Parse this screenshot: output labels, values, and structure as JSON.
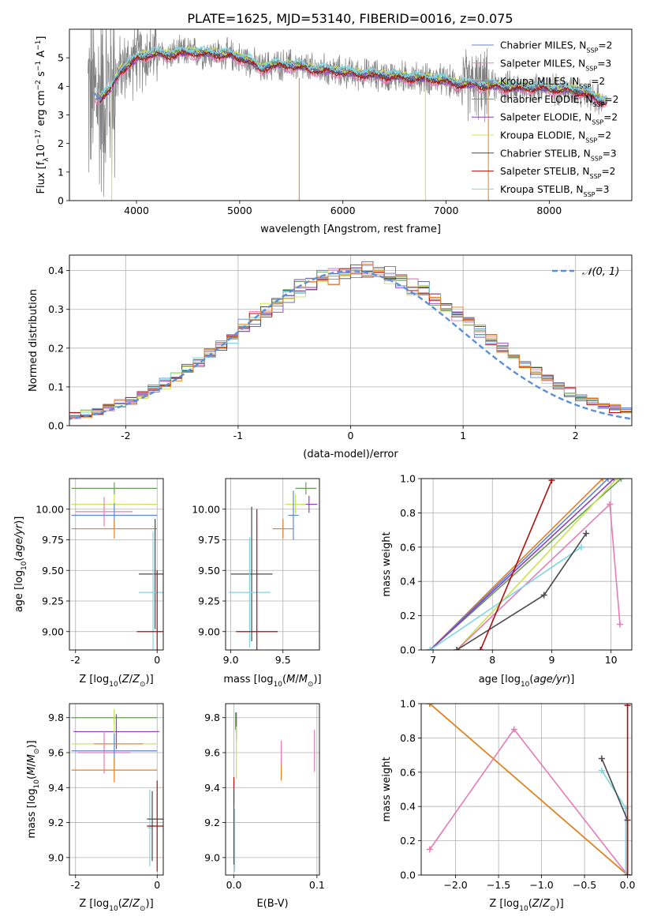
{
  "title": "PLATE=1625, MJD=53140, FIBERID=0016, z=0.075",
  "colors": {
    "Chabrier MILES": "#5c86d8",
    "Salpeter MILES": "#e77bb6",
    "Kroupa MILES": "#6f6f9e",
    "Chabrier ELODIE": "#6a9e58",
    "Salpeter ELODIE": "#8c3fc6",
    "Kroupa ELODIE": "#c8e34d",
    "Chabrier STELIB": "#4a4a4a",
    "Salpeter STELIB": "#b10f0f",
    "Kroupa STELIB": "#7fd6e0",
    "orange": "#e67e22",
    "data_gray": "#808080",
    "gauss": "#5b8fd6"
  },
  "chart_data": [
    {
      "id": "spectrum",
      "type": "line",
      "title": "PLATE=1625, MJD=53140, FIBERID=0016, z=0.075",
      "xlabel": "wavelength [Angstrom, rest frame]",
      "ylabel_parts": [
        "Flux [f",
        "λ",
        "10",
        "−17",
        " erg cm",
        "−2",
        " s",
        "−1",
        " A",
        "−1",
        "]"
      ],
      "xlim": [
        3350,
        8800
      ],
      "ylim": [
        0,
        6
      ],
      "xticks": [
        4000,
        5000,
        6000,
        7000,
        8000
      ],
      "yticks": [
        0,
        1,
        2,
        3,
        4,
        5
      ],
      "legend_loc": "upper right",
      "legend": [
        {
          "name": "Chabrier MILES",
          "nssp": "2"
        },
        {
          "name": "Salpeter MILES",
          "nssp": "3"
        },
        {
          "name": "Kroupa MILES",
          "nssp": "2"
        },
        {
          "name": "Chabrier ELODIE",
          "nssp": "2"
        },
        {
          "name": "Salpeter ELODIE",
          "nssp": "2"
        },
        {
          "name": "Kroupa ELODIE",
          "nssp": "2"
        },
        {
          "name": "Chabrier STELIB",
          "nssp": "3"
        },
        {
          "name": "Salpeter STELIB",
          "nssp": "2"
        },
        {
          "name": "Kroupa STELIB",
          "nssp": "3"
        }
      ],
      "continuum": {
        "x": [
          3550,
          3650,
          3750,
          3850,
          3950,
          4000,
          4100,
          4200,
          4300,
          4400,
          4500,
          4700,
          4900,
          5100,
          5200,
          5300,
          5500,
          5700,
          5900,
          6100,
          6300,
          6500,
          6700,
          6900,
          7100,
          7300,
          7500,
          7700,
          7900,
          8100,
          8300,
          8500
        ],
        "y": [
          3.7,
          3.6,
          3.9,
          4.6,
          4.8,
          5.0,
          5.1,
          5.15,
          5.1,
          5.15,
          5.2,
          5.15,
          5.1,
          4.9,
          4.6,
          4.75,
          4.75,
          4.6,
          4.55,
          4.45,
          4.4,
          4.35,
          4.3,
          4.25,
          4.1,
          4.05,
          4.0,
          3.95,
          3.95,
          3.9,
          3.85,
          3.5
        ]
      }
    },
    {
      "id": "residuals",
      "type": "histogram",
      "xlabel": "(data-model)/error",
      "ylabel": "Normed distribution",
      "xlim": [
        -2.5,
        2.5
      ],
      "ylim": [
        0,
        0.44
      ],
      "xticks": [
        -2,
        -1,
        0,
        1,
        2
      ],
      "yticks": [
        0.0,
        0.1,
        0.2,
        0.3,
        0.4
      ],
      "legend_loc": "upper right",
      "legend": "𝒩(0, 1)",
      "grid": true
    },
    {
      "id": "z-age",
      "type": "errorbar",
      "xlabel": "Z [log10(Z/Z⊙)]",
      "ylabel": "age  [log10(age/yr)]",
      "xlim": [
        -2.15,
        0.15
      ],
      "ylim": [
        8.85,
        10.25
      ],
      "xticks": [
        -2,
        0
      ],
      "yticks": [
        9.0,
        9.25,
        9.5,
        9.75,
        10.0
      ],
      "points": [
        {
          "s": "Chabrier ELODIE",
          "x": -1.05,
          "y": 10.17,
          "xe": 1.05,
          "ye": 0.05
        },
        {
          "s": "Kroupa ELODIE",
          "x": -1.05,
          "y": 10.04,
          "xe": 1.05,
          "ye": 0.08
        },
        {
          "s": "Salpeter MILES",
          "x": -1.3,
          "y": 9.98,
          "xe": 0.7,
          "ye": 0.12
        },
        {
          "s": "Chabrier MILES",
          "x": -1.05,
          "y": 9.95,
          "xe": 1.05,
          "ye": 0.1
        },
        {
          "s": "orange",
          "x": -1.05,
          "y": 9.84,
          "xe": 1.05,
          "ye": 0.08
        },
        {
          "s": "Chabrier STELIB",
          "x": -0.05,
          "y": 9.47,
          "xe": 0.4,
          "ye": 0.45
        },
        {
          "s": "Kroupa STELIB",
          "x": -0.1,
          "y": 9.32,
          "xe": 0.35,
          "ye": 0.5
        },
        {
          "s": "Salpeter STELIB",
          "x": 0.0,
          "y": 9.0,
          "xe": 0.5,
          "ye": 0.5
        }
      ]
    },
    {
      "id": "mass-age",
      "type": "errorbar",
      "xlabel": "mass [log10(M/M⊙)]",
      "xlim": [
        8.95,
        9.85
      ],
      "ylim": [
        8.85,
        10.25
      ],
      "xticks": [
        9.0,
        9.5
      ],
      "yticks": [
        9.0,
        9.25,
        9.5,
        9.75,
        10.0
      ],
      "points": [
        {
          "s": "Chabrier ELODIE",
          "x": 9.72,
          "y": 10.17,
          "xe": 0.1,
          "ye": 0.05
        },
        {
          "s": "Salpeter ELODIE",
          "x": 9.75,
          "y": 10.04,
          "xe": 0.08,
          "ye": 0.07
        },
        {
          "s": "Kroupa ELODIE",
          "x": 9.62,
          "y": 10.04,
          "xe": 0.1,
          "ye": 0.08
        },
        {
          "s": "Chabrier MILES",
          "x": 9.6,
          "y": 9.95,
          "xe": 0.05,
          "ye": 0.2
        },
        {
          "s": "orange",
          "x": 9.5,
          "y": 9.84,
          "xe": 0.1,
          "ye": 0.08
        },
        {
          "s": "Chabrier STELIB",
          "x": 9.2,
          "y": 9.47,
          "xe": 0.2,
          "ye": 0.55
        },
        {
          "s": "Kroupa STELIB",
          "x": 9.18,
          "y": 9.32,
          "xe": 0.2,
          "ye": 0.45
        },
        {
          "s": "Salpeter STELIB",
          "x": 9.25,
          "y": 9.0,
          "xe": 0.2,
          "ye": 1.0
        }
      ]
    },
    {
      "id": "age-weight",
      "type": "line",
      "xlabel": "age  [log10(age/yr)]",
      "ylabel": "mass weight",
      "xlim": [
        6.8,
        10.35
      ],
      "ylim": [
        0,
        1
      ],
      "xticks": [
        7,
        8,
        9,
        10
      ],
      "yticks": [
        0.0,
        0.2,
        0.4,
        0.6,
        0.8,
        1.0
      ],
      "series": [
        {
          "s": "Chabrier ELODIE",
          "x": [
            6.95,
            10.17
          ],
          "y": [
            0.0,
            1.0
          ]
        },
        {
          "s": "orange",
          "x": [
            6.95,
            9.86
          ],
          "y": [
            0.0,
            1.0
          ]
        },
        {
          "s": "Chabrier MILES",
          "x": [
            6.95,
            9.95
          ],
          "y": [
            0.0,
            1.0
          ]
        },
        {
          "s": "Salpeter ELODIE",
          "x": [
            6.95,
            10.05
          ],
          "y": [
            0.0,
            1.0
          ]
        },
        {
          "s": "Kroupa ELODIE",
          "x": [
            7.4,
            10.1
          ],
          "y": [
            0.0,
            1.0
          ]
        },
        {
          "s": "Salpeter MILES",
          "x": [
            7.4,
            9.98,
            10.15
          ],
          "y": [
            0.0,
            0.85,
            0.15
          ]
        },
        {
          "s": "Kroupa STELIB",
          "x": [
            6.95,
            9.5
          ],
          "y": [
            0.0,
            0.6
          ]
        },
        {
          "s": "Chabrier STELIB",
          "x": [
            7.4,
            8.87,
            9.58
          ],
          "y": [
            0.0,
            0.32,
            0.68
          ]
        },
        {
          "s": "Salpeter STELIB",
          "x": [
            7.8,
            9.0
          ],
          "y": [
            0.0,
            0.99
          ]
        }
      ]
    },
    {
      "id": "z-mass",
      "type": "errorbar",
      "xlabel": "Z [log10(Z/Z⊙)]",
      "ylabel": "mass [log10(M/M⊙)]",
      "xlim": [
        -2.15,
        0.15
      ],
      "ylim": [
        8.9,
        9.88
      ],
      "xticks": [
        -2,
        0
      ],
      "yticks": [
        9.0,
        9.2,
        9.4,
        9.6,
        9.8
      ],
      "points": [
        {
          "s": "Chabrier ELODIE",
          "x": -1.05,
          "y": 9.8,
          "xe": 1.05,
          "ye": 0.04
        },
        {
          "s": "Salpeter ELODIE",
          "x": -1.0,
          "y": 9.72,
          "xe": 1.05,
          "ye": 0.1
        },
        {
          "s": "Kroupa ELODIE",
          "x": -1.05,
          "y": 9.65,
          "xe": 1.05,
          "ye": 0.2
        },
        {
          "s": "orange",
          "x": -0.95,
          "y": 9.65,
          "xe": 0.6,
          "ye": 0.0
        },
        {
          "s": "Salpeter MILES",
          "x": -1.3,
          "y": 9.6,
          "xe": 0.65,
          "ye": 0.12
        },
        {
          "s": "Chabrier MILES",
          "x": -1.05,
          "y": 9.61,
          "xe": 1.05,
          "ye": 0.1
        },
        {
          "s": "orange",
          "x": -1.05,
          "y": 9.5,
          "xe": 1.05,
          "ye": 0.07
        },
        {
          "s": "Chabrier STELIB",
          "x": -0.12,
          "y": 9.18,
          "xe": 0.05,
          "ye": 0.2
        },
        {
          "s": "Kroupa STELIB",
          "x": -0.18,
          "y": 9.17,
          "xe": 0.05,
          "ye": 0.22
        },
        {
          "s": "Chabrier STELIB",
          "x": -0.05,
          "y": 9.22,
          "xe": 0.2,
          "ye": 0.0
        },
        {
          "s": "Salpeter STELIB",
          "x": 0.0,
          "y": 9.18,
          "xe": 0.25,
          "ye": 0.26
        }
      ]
    },
    {
      "id": "ebv-mass",
      "type": "errorbar",
      "xlabel": "E(B-V)",
      "xlim": [
        -0.01,
        0.103
      ],
      "ylim": [
        8.9,
        9.88
      ],
      "xticks": [
        0.0,
        0.1
      ],
      "yticks": [
        9.0,
        9.2,
        9.4,
        9.6,
        9.8
      ],
      "points": [
        {
          "s": "Chabrier ELODIE",
          "x": 0.002,
          "y": 9.78,
          "xe": 0.0,
          "ye": 0.05
        },
        {
          "s": "Salpeter ELODIE",
          "x": 0.003,
          "y": 9.75,
          "xe": 0.0,
          "ye": 0.08
        },
        {
          "s": "Kroupa ELODIE",
          "x": 0.003,
          "y": 9.6,
          "xe": 0.0,
          "ye": 0.15
        },
        {
          "s": "orange",
          "x": 0.057,
          "y": 9.55,
          "xe": 0.0,
          "ye": 0.11
        },
        {
          "s": "Salpeter MILES",
          "x": 0.057,
          "y": 9.6,
          "xe": 0.0,
          "ye": 0.07
        },
        {
          "s": "Salpeter MILES",
          "x": 0.097,
          "y": 9.61,
          "xe": 0.0,
          "ye": 0.12
        },
        {
          "s": "Salpeter STELIB",
          "x": 0.0,
          "y": 9.38,
          "xe": 0.0,
          "ye": 0.08
        },
        {
          "s": "Chabrier STELIB",
          "x": 0.0,
          "y": 9.18,
          "xe": 0.0,
          "ye": 0.22
        },
        {
          "s": "Kroupa STELIB",
          "x": 0.001,
          "y": 9.1,
          "xe": 0.0,
          "ye": 0.18
        }
      ]
    },
    {
      "id": "z-weight",
      "type": "line",
      "xlabel": "Z [log10(Z/Z⊙)]",
      "ylabel": "mass weight",
      "xlim": [
        -2.4,
        0.05
      ],
      "ylim": [
        0,
        1
      ],
      "xticks": [
        -2.0,
        -1.5,
        -1.0,
        -0.5,
        0.0
      ],
      "yticks": [
        0.0,
        0.2,
        0.4,
        0.6,
        0.8,
        1.0
      ],
      "series": [
        {
          "s": "Chabrier ELODIE",
          "x": [
            -2.3,
            0.0
          ],
          "y": [
            1.0,
            0.0
          ]
        },
        {
          "s": "Kroupa ELODIE",
          "x": [
            -2.3,
            0.0
          ],
          "y": [
            1.0,
            0.0
          ]
        },
        {
          "s": "orange",
          "x": [
            -2.3,
            0.0
          ],
          "y": [
            1.0,
            0.0
          ]
        },
        {
          "s": "Salpeter MILES",
          "x": [
            -2.3,
            -1.32,
            0.0
          ],
          "y": [
            0.15,
            0.85,
            0.0
          ]
        },
        {
          "s": "Kroupa STELIB",
          "x": [
            -0.3,
            -0.02,
            -0.02
          ],
          "y": [
            0.61,
            0.39,
            0.0
          ]
        },
        {
          "s": "Chabrier STELIB",
          "x": [
            -0.3,
            0.0,
            0.0
          ],
          "y": [
            0.68,
            0.32,
            0.0
          ]
        },
        {
          "s": "Salpeter STELIB",
          "x": [
            0.0,
            0.0
          ],
          "y": [
            0.0,
            0.99
          ]
        }
      ]
    }
  ]
}
